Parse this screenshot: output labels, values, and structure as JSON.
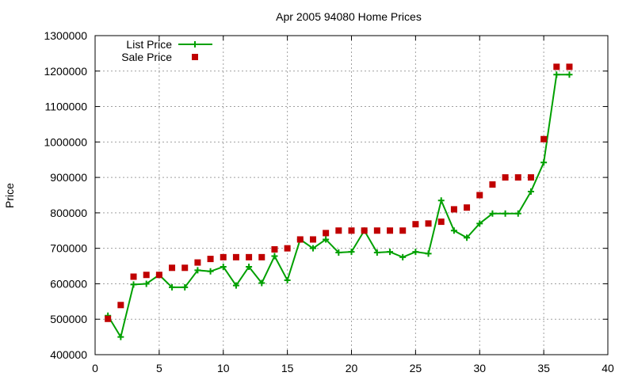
{
  "chart_data": {
    "type": "scatter",
    "title": "Apr 2005 94080 Home Prices",
    "xlabel": "",
    "ylabel": "Price",
    "xlim": [
      0,
      40
    ],
    "ylim": [
      400000,
      1300000
    ],
    "xticks": [
      0,
      5,
      10,
      15,
      20,
      25,
      30,
      35,
      40
    ],
    "yticks": [
      400000,
      500000,
      600000,
      700000,
      800000,
      900000,
      1000000,
      1100000,
      1200000,
      1300000
    ],
    "grid": true,
    "legend_position": "top-left",
    "series": [
      {
        "name": "List Price",
        "style": "linespoints",
        "color": "#00a000",
        "x": [
          1,
          2,
          3,
          4,
          5,
          6,
          7,
          8,
          9,
          10,
          11,
          12,
          13,
          14,
          15,
          16,
          17,
          18,
          19,
          20,
          21,
          22,
          23,
          24,
          25,
          26,
          27,
          28,
          29,
          30,
          31,
          32,
          33,
          34,
          35,
          36,
          37
        ],
        "y": [
          510000,
          450000,
          598000,
          600000,
          625000,
          590000,
          590000,
          638000,
          635000,
          648000,
          595000,
          648000,
          602000,
          678000,
          610000,
          725000,
          700000,
          725000,
          688000,
          690000,
          750000,
          688000,
          690000,
          675000,
          690000,
          685000,
          835000,
          750000,
          730000,
          770000,
          798000,
          798000,
          798000,
          860000,
          942000,
          1190000,
          1190000
        ]
      },
      {
        "name": "Sale Price",
        "style": "points",
        "color": "#c00000",
        "x": [
          1,
          2,
          3,
          4,
          5,
          6,
          7,
          8,
          9,
          10,
          11,
          12,
          13,
          14,
          15,
          16,
          17,
          18,
          19,
          20,
          21,
          22,
          23,
          24,
          25,
          26,
          27,
          28,
          29,
          30,
          31,
          32,
          33,
          34,
          35,
          36,
          37
        ],
        "y": [
          501000,
          540000,
          620000,
          625000,
          625000,
          645000,
          645000,
          660000,
          670000,
          675000,
          675000,
          675000,
          675000,
          697000,
          700000,
          725000,
          725000,
          743000,
          750000,
          750000,
          750000,
          750000,
          750000,
          750000,
          768000,
          770000,
          775000,
          810000,
          815000,
          850000,
          880000,
          900000,
          900000,
          900000,
          1008000,
          1212000,
          1212000
        ]
      }
    ]
  }
}
